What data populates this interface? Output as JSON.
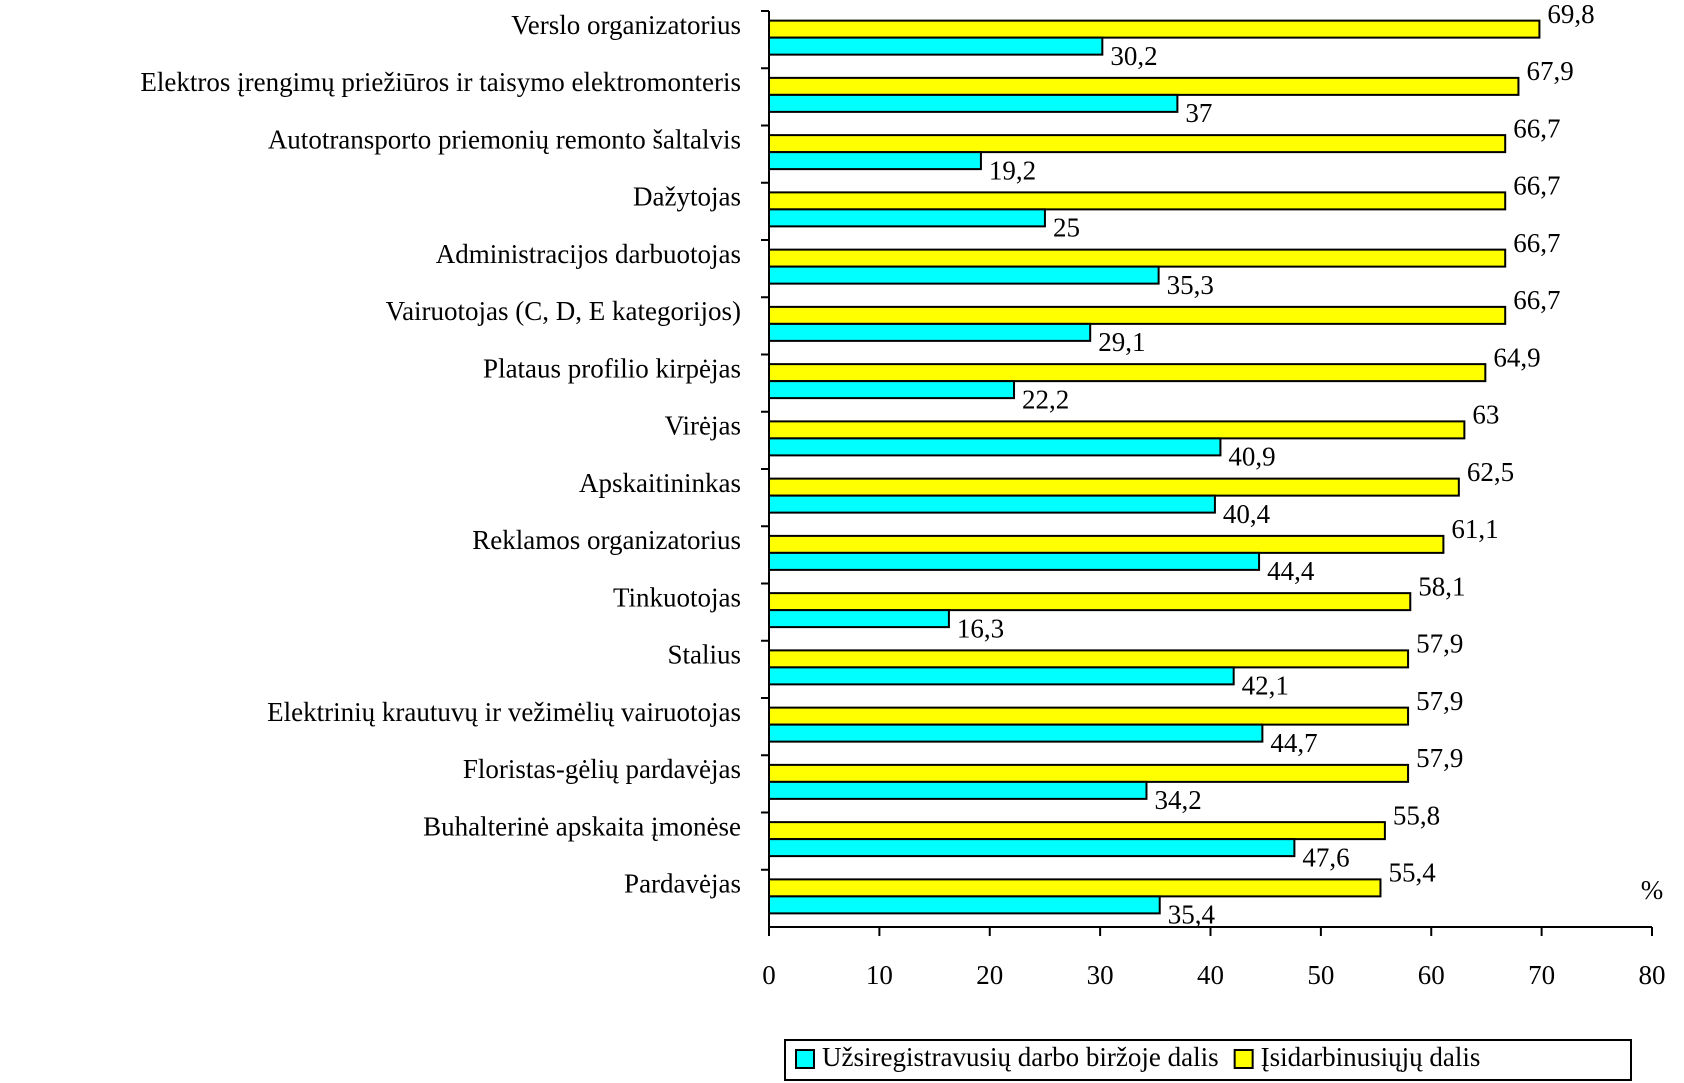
{
  "chart_data": {
    "type": "hbar",
    "categories": [
      "Verslo organizatorius",
      "Elektros įrengimų priežiūros ir taisymo elektromonteris",
      "Autotransporto priemonių remonto šaltalvis",
      "Dažytojas",
      "Administracijos darbuotojas",
      "Vairuotojas (C, D, E kategorijos)",
      "Plataus profilio kirpėjas",
      "Virėjas",
      "Apskaitininkas",
      "Reklamos organizatorius",
      "Tinkuotojas",
      "Stalius",
      "Elektrinių krautuvų ir vežimėlių vairuotojas",
      "Floristas-gėlių pardavėjas",
      "Buhalterinė apskaita įmonėse",
      "Pardavėjas"
    ],
    "series": [
      {
        "name": "Įsidarbinusiųjų dalis",
        "color": "#ffff00",
        "values": [
          69.8,
          67.9,
          66.7,
          66.7,
          66.7,
          66.7,
          64.9,
          63,
          62.5,
          61.1,
          58.1,
          57.9,
          57.9,
          57.9,
          55.8,
          55.4
        ],
        "value_labels": [
          "69,8",
          "67,9",
          "66,7",
          "66,7",
          "66,7",
          "66,7",
          "64,9",
          "63",
          "62,5",
          "61,1",
          "58,1",
          "57,9",
          "57,9",
          "57,9",
          "55,8",
          "55,4"
        ]
      },
      {
        "name": "Užsiregistravusių darbo biržoje dalis",
        "color": "#00ffff",
        "values": [
          30.2,
          37,
          19.2,
          25,
          35.3,
          29.1,
          22.2,
          40.9,
          40.4,
          44.4,
          16.3,
          42.1,
          44.7,
          34.2,
          47.6,
          35.4
        ],
        "value_labels": [
          "30,2",
          "37",
          "19,2",
          "25",
          "35,3",
          "29,1",
          "22,2",
          "40,9",
          "40,4",
          "44,4",
          "16,3",
          "42,1",
          "44,7",
          "34,2",
          "47,6",
          "35,4"
        ]
      }
    ],
    "x_unit_label": "%",
    "xlim": [
      0,
      80
    ],
    "xticks": [
      0,
      10,
      20,
      30,
      40,
      50,
      60,
      70,
      80
    ],
    "grid": false,
    "legend": "bottom-right"
  }
}
